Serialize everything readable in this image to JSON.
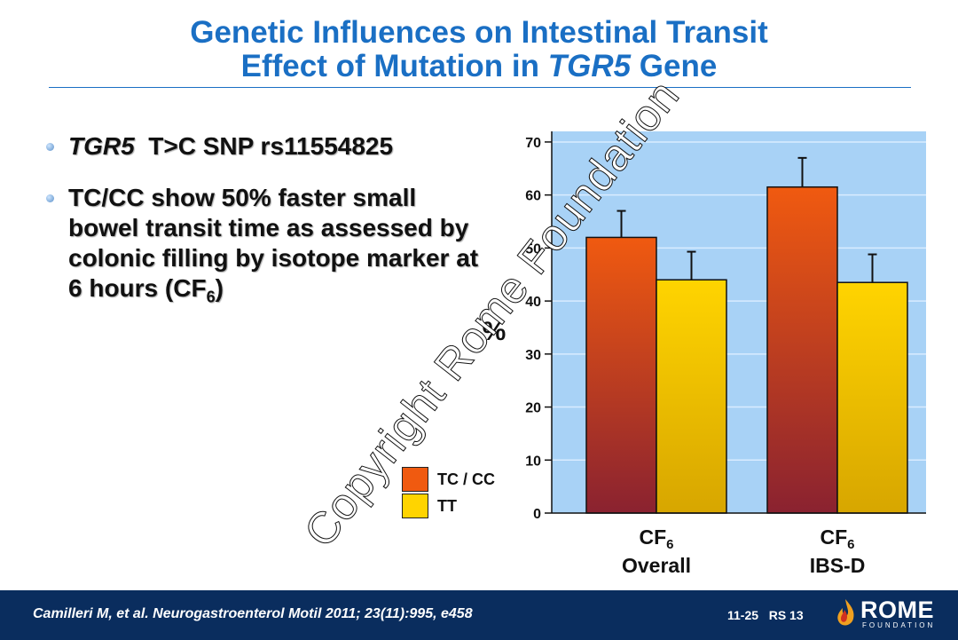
{
  "title": {
    "line1": "Genetic Influences on Intestinal Transit",
    "line2_prefix": "Effect of Mutation in ",
    "line2_italic": "TGR5",
    "line2_suffix": " Gene"
  },
  "bullets": {
    "b1_italic": "TGR5",
    "b1_rest": "  T>C SNP rs11554825",
    "b2_text": "TC/CC show 50% faster small bowel transit time as assessed by colonic filling by isotope marker at 6 hours (CF",
    "b2_sub": "6",
    "b2_end": ")"
  },
  "legend": {
    "tc_label": "TC / CC",
    "tt_label": "TT"
  },
  "watermark": "Copyright Rome Foundation",
  "chart_data": {
    "type": "bar",
    "title": "",
    "ylabel": "%",
    "ylim": [
      0,
      72
    ],
    "yticks": [
      0,
      10,
      20,
      30,
      40,
      50,
      60,
      70
    ],
    "grid": true,
    "categories": [
      {
        "main": "CF",
        "sub": "6",
        "line2": "Overall"
      },
      {
        "main": "CF",
        "sub": "6",
        "line2": "IBS-D"
      }
    ],
    "series": [
      {
        "name": "TC / CC",
        "values": [
          52,
          61.5
        ],
        "errors": [
          5,
          5.5
        ]
      },
      {
        "name": "TT",
        "values": [
          44,
          43.5
        ],
        "errors": [
          5.3,
          5.3
        ]
      }
    ]
  },
  "footer": {
    "citation": "Camilleri M, et al. Neurogastroenterol Motil 2011; 23(11):995, e458",
    "slide_number": "11-25   RS 13",
    "logo_name": "ROME",
    "logo_sub": "FOUNDATION"
  },
  "colors": {
    "title": "#1a6fc4",
    "plot_bg": "#a8d2f6",
    "tc_top": "#f05a10",
    "tc_bottom": "#8a2230",
    "tt_top": "#ffd400",
    "tt_bottom": "#d7a600",
    "footer_bg": "#0a2d5e"
  }
}
